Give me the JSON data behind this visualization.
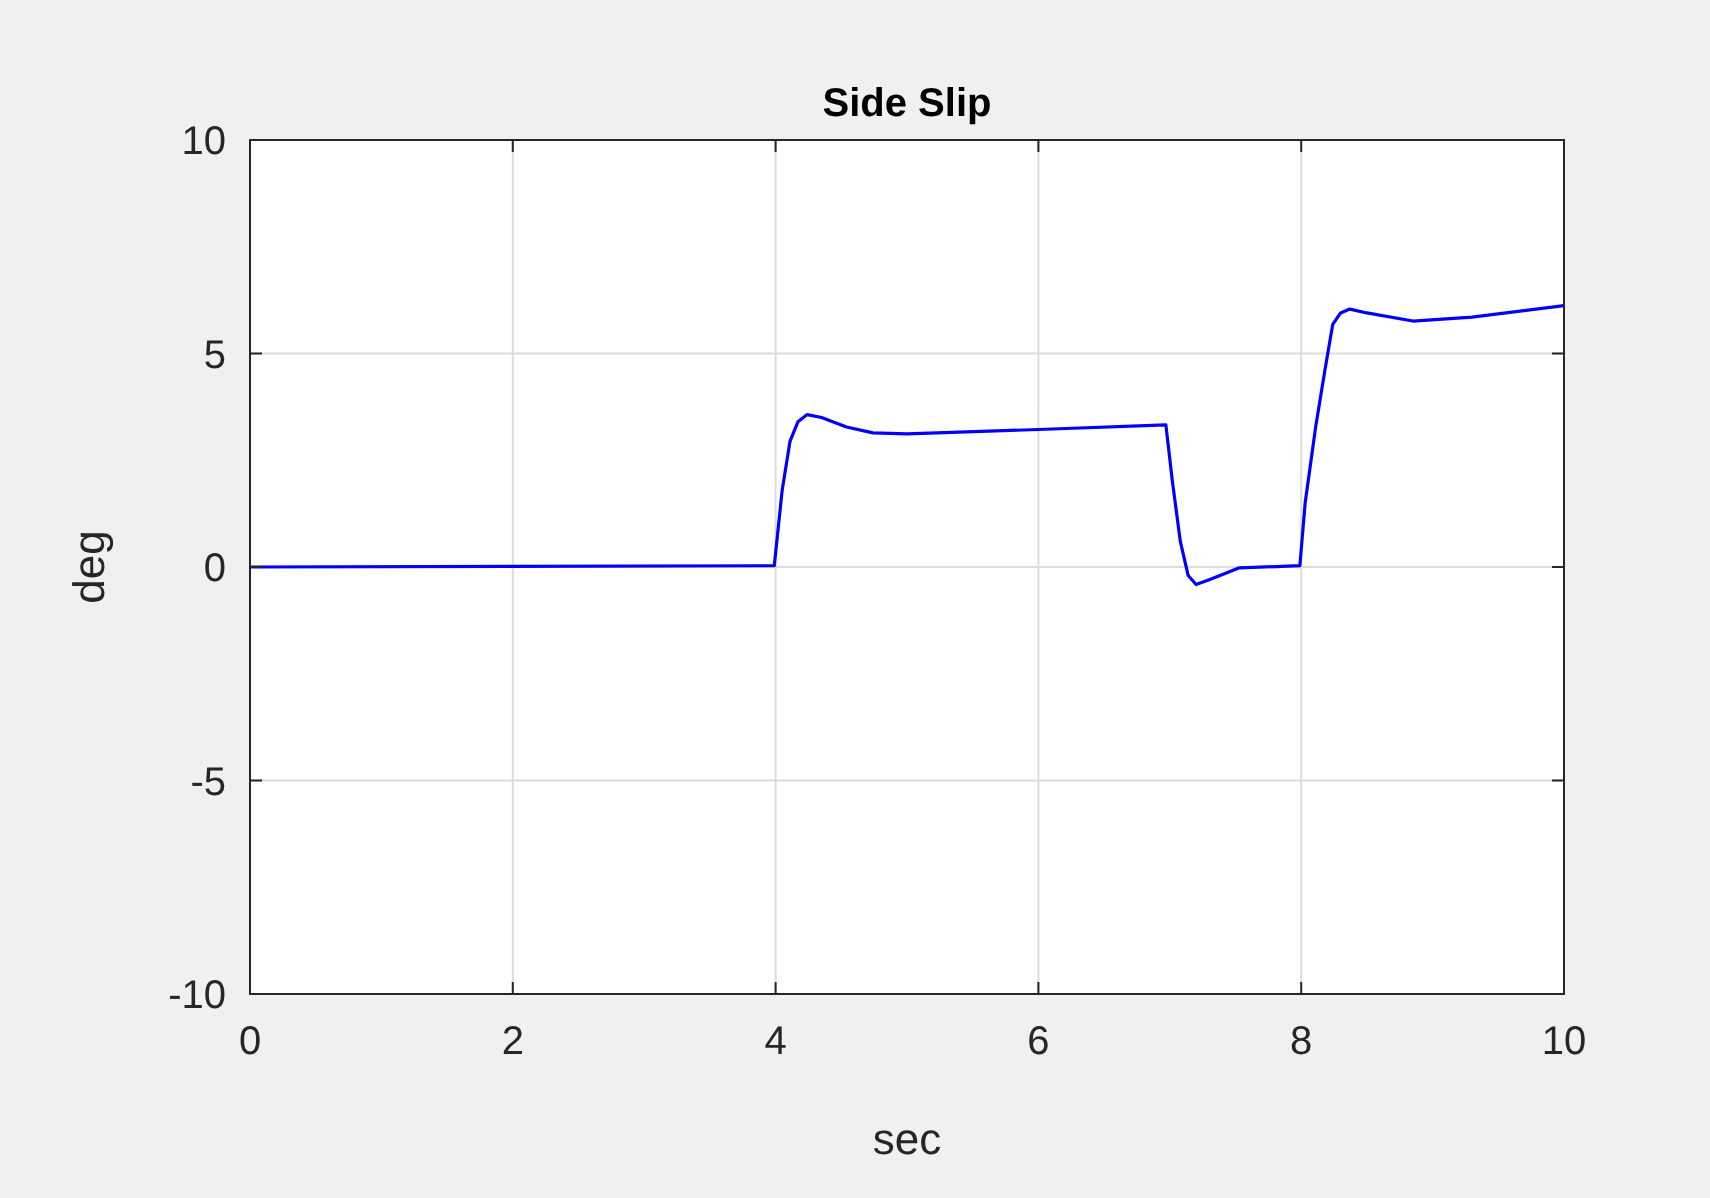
{
  "chart_data": {
    "type": "line",
    "title": "Side Slip",
    "xlabel": "sec",
    "ylabel": "deg",
    "x": [
      0,
      3.99,
      4.05,
      4.11,
      4.17,
      4.24,
      4.35,
      4.54,
      4.74,
      5.0,
      6.0,
      6.97,
      7.02,
      7.08,
      7.14,
      7.2,
      7.3,
      7.53,
      7.99,
      8.03,
      8.11,
      8.18,
      8.24,
      8.3,
      8.37,
      8.5,
      8.85,
      9.3,
      10
    ],
    "series": [
      {
        "color": "#0000ff",
        "values": [
          0,
          0.03,
          1.8,
          2.95,
          3.4,
          3.57,
          3.5,
          3.28,
          3.14,
          3.12,
          3.22,
          3.33,
          2.0,
          0.6,
          -0.2,
          -0.41,
          -0.3,
          -0.02,
          0.03,
          1.5,
          3.28,
          4.6,
          5.68,
          5.95,
          6.04,
          5.95,
          5.76,
          5.85,
          6.12
        ]
      }
    ],
    "xlim": [
      0,
      10
    ],
    "ylim": [
      -10,
      10
    ],
    "xticks": [
      0,
      2,
      4,
      6,
      8,
      10
    ],
    "yticks": [
      -10,
      -5,
      0,
      5,
      10
    ],
    "grid": true,
    "line_style": "solid",
    "marker": "none"
  }
}
